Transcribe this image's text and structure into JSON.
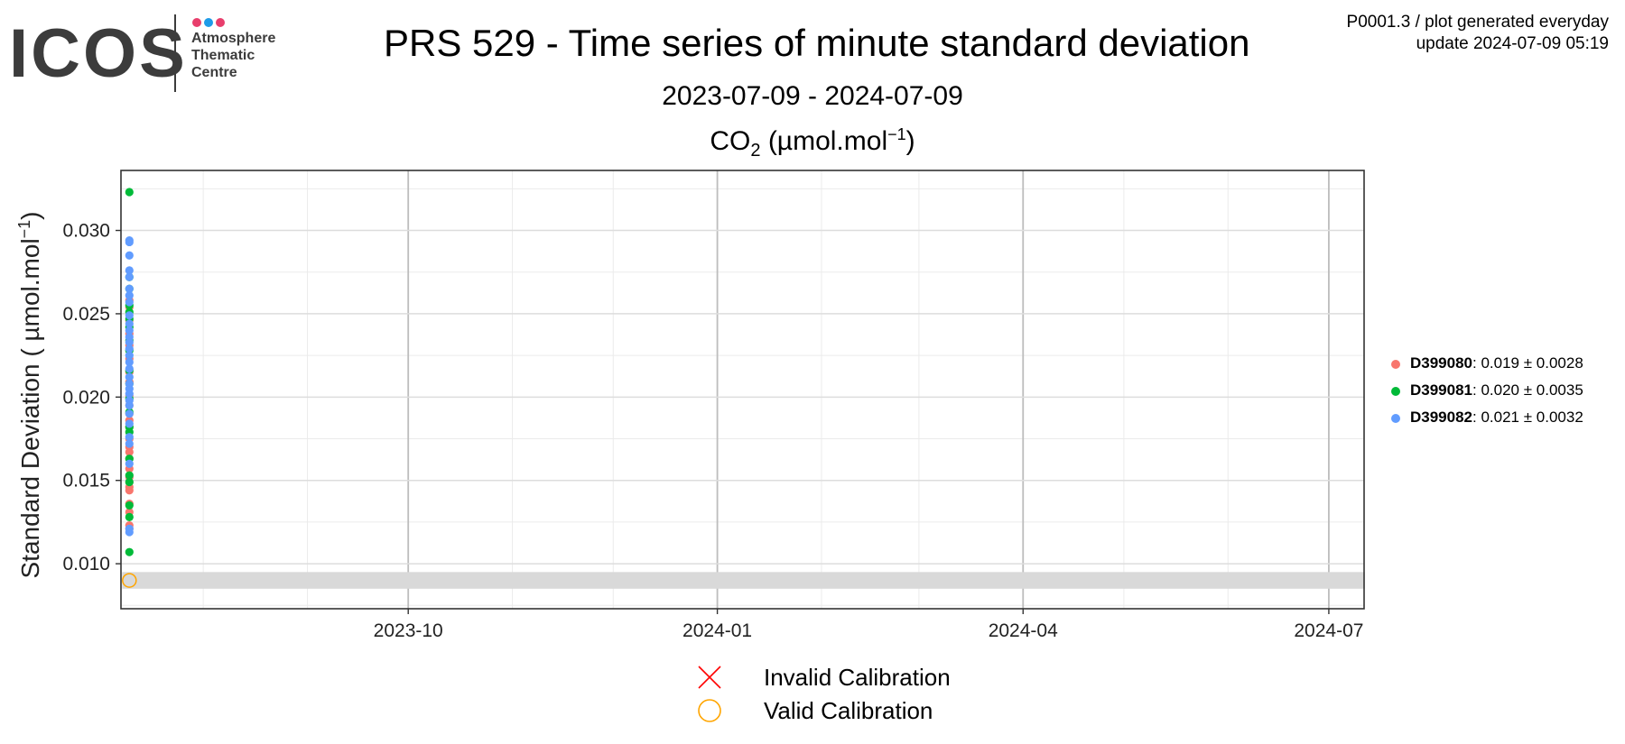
{
  "logo": {
    "wordmark": "ICOS",
    "subtitle_lines": [
      "Atmosphere",
      "Thematic",
      "Centre"
    ],
    "dot_colors": [
      "#e83e6c",
      "#1e9be8",
      "#e83e6c"
    ]
  },
  "header": {
    "title": "PRS 529 - Time series of minute standard deviation",
    "date_range": "2023-07-09 - 2024-07-09",
    "meta_line1": "P0001.3 / plot generated everyday",
    "meta_line2": "update  2024-07-09 05:19"
  },
  "chart_data": {
    "type": "scatter",
    "title": "CO2 (µmol.mol-1)",
    "ylabel": "Standard Deviation ( µmol.mol-1)",
    "xlabel": "",
    "x_range": [
      "2023-07-09",
      "2024-07-09"
    ],
    "ylim": [
      0.0073,
      0.0336
    ],
    "x_ticks": [
      "2023-10",
      "2024-01",
      "2024-04",
      "2024-07"
    ],
    "y_ticks": [
      "0.010",
      "0.015",
      "0.020",
      "0.025",
      "0.030"
    ],
    "grid": true,
    "legend_placement": "right",
    "series": [
      {
        "name": "D399080",
        "color": "#f8766d",
        "summary": ": 0.019 ± 0.0028",
        "x": "2023-07-10",
        "values": [
          0.0121,
          0.0123,
          0.0131,
          0.0136,
          0.0144,
          0.0146,
          0.0149,
          0.0152,
          0.0157,
          0.0163,
          0.0167,
          0.017,
          0.0175,
          0.0182,
          0.0186,
          0.019,
          0.0195,
          0.0201,
          0.0209,
          0.0215,
          0.0223,
          0.0231,
          0.0238,
          0.0246,
          0.0254,
          0.0258
        ]
      },
      {
        "name": "D399081",
        "color": "#00ba38",
        "summary": ": 0.020 ± 0.0035",
        "x": "2023-07-10",
        "values": [
          0.0323,
          0.0272,
          0.0265,
          0.0255,
          0.0251,
          0.0247,
          0.0242,
          0.0234,
          0.0228,
          0.0216,
          0.0208,
          0.0199,
          0.0191,
          0.0182,
          0.0179,
          0.0163,
          0.0153,
          0.0149,
          0.0135,
          0.0128,
          0.0107
        ]
      },
      {
        "name": "D399082",
        "color": "#619cff",
        "summary": ": 0.021 ± 0.0032",
        "x": "2023-07-10",
        "values": [
          0.0294,
          0.0293,
          0.0285,
          0.0276,
          0.0272,
          0.0265,
          0.0261,
          0.0257,
          0.0249,
          0.0244,
          0.024,
          0.0236,
          0.0233,
          0.0229,
          0.0225,
          0.0221,
          0.0217,
          0.0212,
          0.0208,
          0.0205,
          0.0202,
          0.0198,
          0.0195,
          0.019,
          0.0184,
          0.0176,
          0.0172,
          0.016,
          0.0121,
          0.0119
        ]
      }
    ],
    "calibration": {
      "valid_x": "2023-07-10",
      "valid_y": 0.009,
      "band_y": [
        0.0085,
        0.0095
      ],
      "band_color": "#d9d9d9",
      "valid_color": "#ffa500",
      "invalid_color": "#ff0000"
    }
  },
  "legend_bottom": {
    "invalid_label": "Invalid Calibration",
    "valid_label": "Valid Calibration"
  }
}
